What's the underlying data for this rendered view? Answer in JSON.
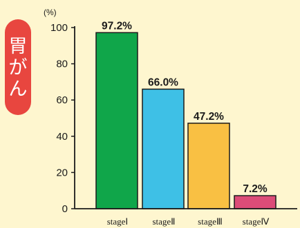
{
  "badge": {
    "chars": [
      "胃",
      "が",
      "ん"
    ]
  },
  "colors": {
    "background": "#fef6cf",
    "badge": "#e8463f",
    "axis": "#1a1a1a"
  },
  "chart_data": {
    "type": "bar",
    "title": "胃がん",
    "unit": "(%)",
    "categories": [
      "stageⅠ",
      "stageⅡ",
      "stageⅢ",
      "stageⅣ"
    ],
    "values": [
      97.2,
      66.0,
      47.2,
      7.2
    ],
    "value_labels": [
      "97.2%",
      "66.0%",
      "47.2%",
      "7.2%"
    ],
    "bar_colors": [
      "#10a64a",
      "#3ec0e6",
      "#f9c043",
      "#dc4c78"
    ],
    "y_ticks": [
      0,
      20,
      40,
      60,
      80,
      100
    ],
    "ylim": [
      0,
      100
    ],
    "grid": false,
    "legend": "none"
  }
}
